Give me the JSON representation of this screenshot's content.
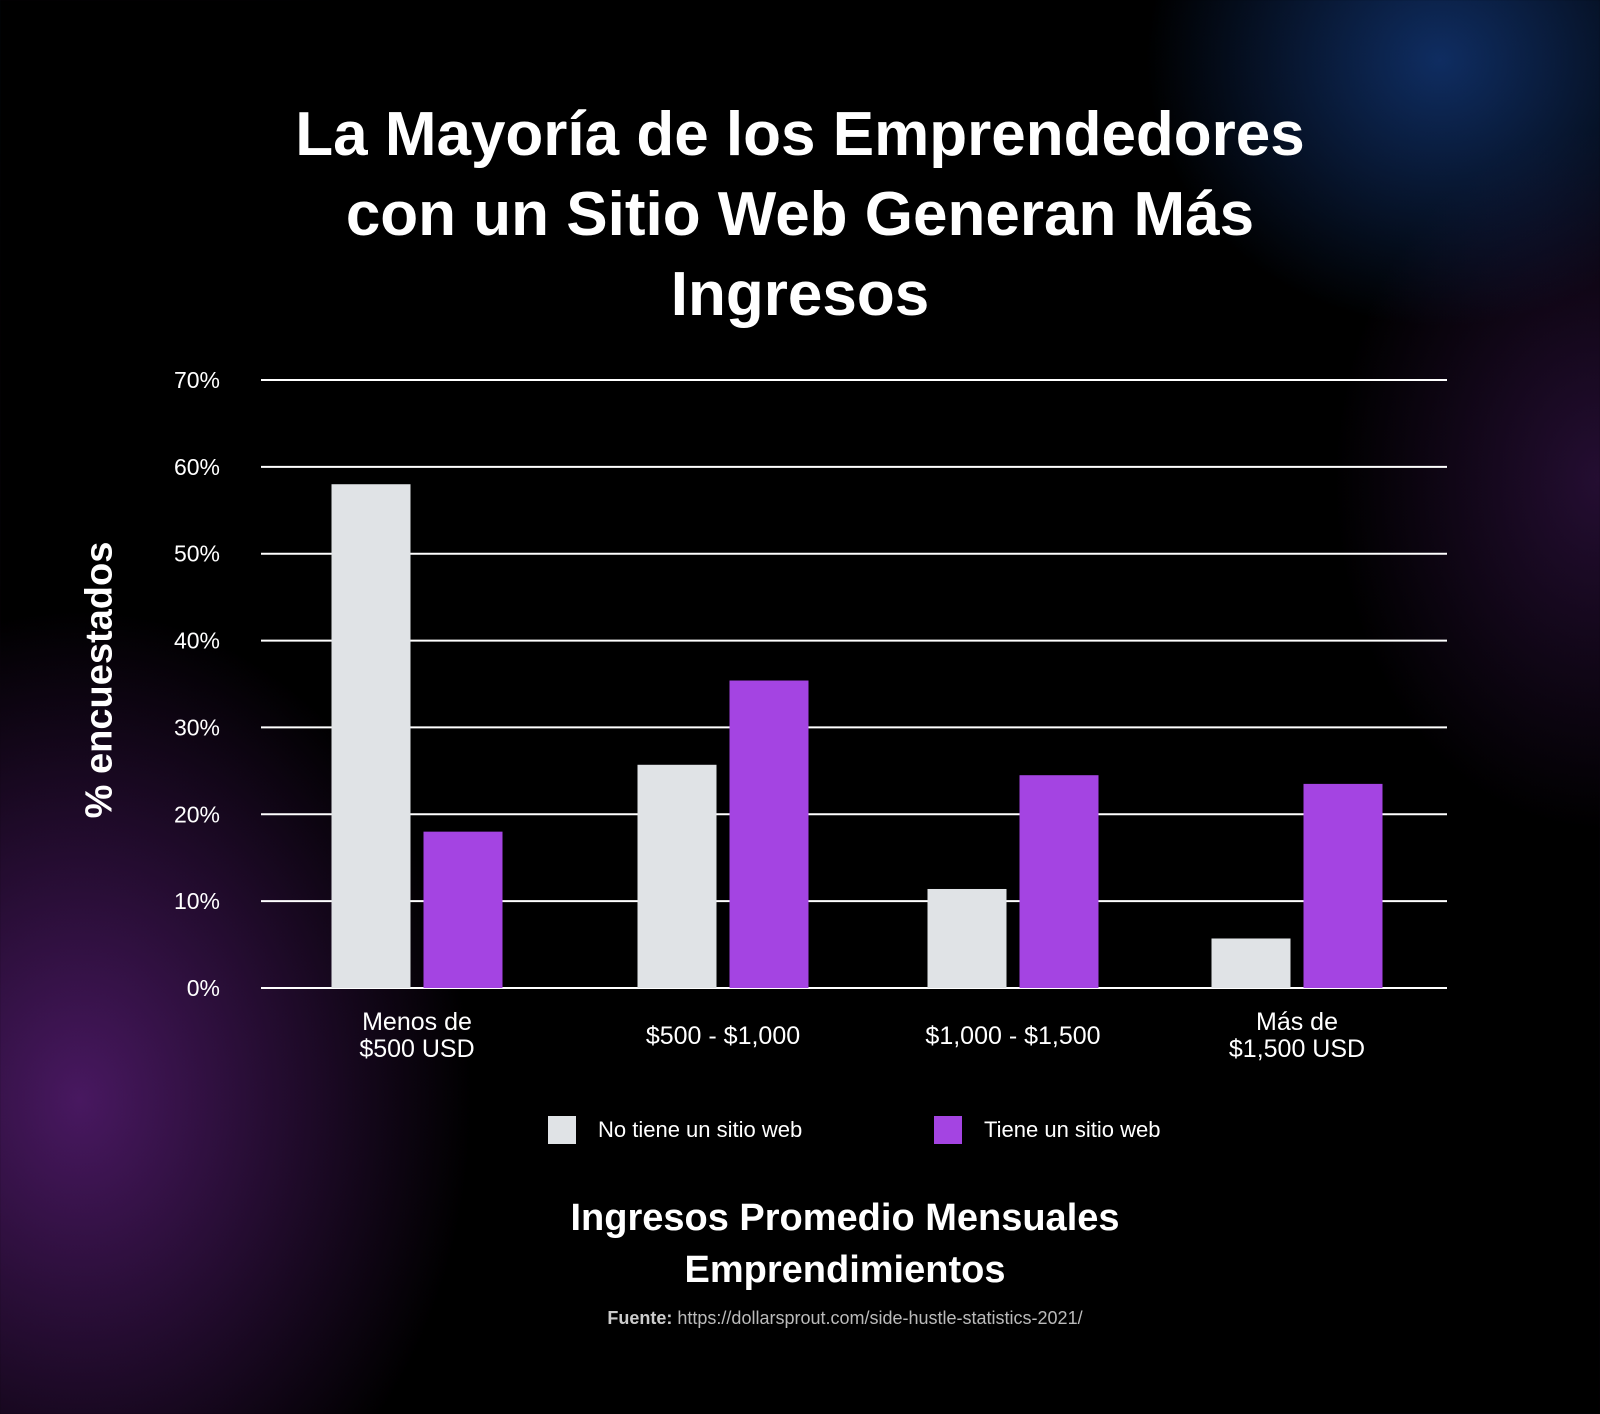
{
  "chart_data": {
    "type": "bar",
    "title": "La Mayoría de los Emprendedores con un Sitio Web Generan Más Ingresos",
    "ylabel": "% encuestados",
    "xlabel": "Ingresos Promedio Mensuales Emprendimientos",
    "categories": [
      [
        "Menos de",
        "$500 USD"
      ],
      [
        "$500 - $1,000"
      ],
      [
        "$1,000 - $1,500"
      ],
      [
        "Más de",
        "$1,500 USD"
      ]
    ],
    "series": [
      {
        "name": "No tiene un sitio web",
        "color": "#e0e3e6",
        "values": [
          58,
          25.7,
          11.4,
          5.7
        ]
      },
      {
        "name": "Tiene un sitio web",
        "color": "#a444e2",
        "values": [
          18,
          35.4,
          24.5,
          23.5
        ]
      }
    ],
    "ylim": [
      0,
      70
    ],
    "yticks": [
      "0%",
      "10%",
      "20%",
      "30%",
      "40%",
      "50%",
      "60%",
      "70%"
    ],
    "grid": true,
    "legend_position": "bottom"
  },
  "title_lines": [
    "La Mayoría de los Emprendedores",
    "con un Sitio Web Generan Más",
    "Ingresos"
  ],
  "xtitle_lines": [
    "Ingresos Promedio Mensuales",
    "Emprendimientos"
  ],
  "source": {
    "label": "Fuente:",
    "url": "https://dollarsprout.com/side-hustle-statistics-2021/"
  }
}
